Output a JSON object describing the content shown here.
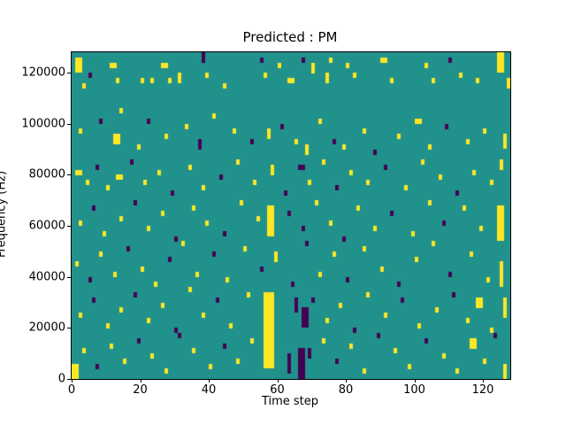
{
  "figure": {
    "title": "Predicted : PM",
    "xlabel": "Time step",
    "ylabel": "Frequency (Hz)"
  },
  "chart_data": {
    "type": "heatmap",
    "title": "Predicted : PM",
    "xlabel": "Time step",
    "ylabel": "Frequency (Hz)",
    "xlim": [
      0,
      128
    ],
    "ylim": [
      0,
      128000
    ],
    "x_ticks": [
      0,
      20,
      40,
      60,
      80,
      100,
      120
    ],
    "y_ticks": [
      0,
      20000,
      40000,
      60000,
      80000,
      100000,
      120000
    ],
    "grid": false,
    "legend": "none",
    "colormap": "viridis",
    "colors": {
      "background": "#21918c",
      "y": "#fde725",
      "p": "#440154"
    },
    "cell_size": {
      "x_steps": 1,
      "y_hz": 2000
    },
    "cells_format": "[x_step, y_bin(2000Hz each, 0=bottom), width_steps, height_bins, color_key(y=yellow,p=purple)]",
    "cells": [
      [
        1,
        60,
        2,
        3,
        "y"
      ],
      [
        3,
        57,
        1,
        1,
        "y"
      ],
      [
        5,
        59,
        1,
        1,
        "p"
      ],
      [
        11,
        61,
        2,
        1,
        "y"
      ],
      [
        13,
        58,
        1,
        1,
        "y"
      ],
      [
        20,
        58,
        1,
        1,
        "y"
      ],
      [
        23,
        58,
        1,
        1,
        "y"
      ],
      [
        26,
        61,
        2,
        1,
        "y"
      ],
      [
        28,
        58,
        1,
        1,
        "y"
      ],
      [
        31,
        58,
        1,
        2,
        "y"
      ],
      [
        38,
        62,
        1,
        2,
        "p"
      ],
      [
        39,
        59,
        1,
        1,
        "y"
      ],
      [
        44,
        57,
        1,
        1,
        "y"
      ],
      [
        55,
        62,
        1,
        1,
        "p"
      ],
      [
        56,
        59,
        1,
        1,
        "y"
      ],
      [
        60,
        61,
        1,
        1,
        "y"
      ],
      [
        63,
        58,
        2,
        1,
        "y"
      ],
      [
        67,
        62,
        1,
        1,
        "p"
      ],
      [
        70,
        60,
        1,
        2,
        "y"
      ],
      [
        74,
        58,
        1,
        2,
        "y"
      ],
      [
        75,
        62,
        1,
        1,
        "y"
      ],
      [
        80,
        61,
        1,
        1,
        "y"
      ],
      [
        82,
        59,
        1,
        1,
        "y"
      ],
      [
        90,
        62,
        2,
        1,
        "y"
      ],
      [
        93,
        58,
        1,
        1,
        "y"
      ],
      [
        103,
        61,
        1,
        1,
        "y"
      ],
      [
        105,
        58,
        1,
        1,
        "y"
      ],
      [
        110,
        62,
        1,
        1,
        "p"
      ],
      [
        113,
        59,
        1,
        1,
        "y"
      ],
      [
        118,
        58,
        1,
        1,
        "y"
      ],
      [
        124,
        60,
        2,
        4,
        "y"
      ],
      [
        127,
        57,
        1,
        2,
        "y"
      ],
      [
        2,
        48,
        1,
        1,
        "y"
      ],
      [
        8,
        50,
        1,
        1,
        "p"
      ],
      [
        12,
        46,
        2,
        2,
        "y"
      ],
      [
        14,
        52,
        1,
        1,
        "y"
      ],
      [
        19,
        45,
        1,
        1,
        "y"
      ],
      [
        22,
        50,
        1,
        1,
        "p"
      ],
      [
        27,
        47,
        1,
        1,
        "y"
      ],
      [
        33,
        49,
        1,
        1,
        "y"
      ],
      [
        37,
        45,
        1,
        2,
        "p"
      ],
      [
        41,
        51,
        1,
        1,
        "y"
      ],
      [
        47,
        48,
        1,
        1,
        "y"
      ],
      [
        52,
        46,
        1,
        1,
        "p"
      ],
      [
        57,
        47,
        1,
        2,
        "y"
      ],
      [
        61,
        49,
        1,
        1,
        "p"
      ],
      [
        65,
        46,
        1,
        1,
        "y"
      ],
      [
        68,
        44,
        1,
        2,
        "y"
      ],
      [
        72,
        50,
        1,
        1,
        "y"
      ],
      [
        76,
        46,
        1,
        1,
        "p"
      ],
      [
        79,
        45,
        1,
        1,
        "y"
      ],
      [
        85,
        48,
        1,
        1,
        "y"
      ],
      [
        88,
        44,
        1,
        1,
        "p"
      ],
      [
        95,
        47,
        1,
        1,
        "y"
      ],
      [
        100,
        50,
        2,
        1,
        "y"
      ],
      [
        104,
        45,
        1,
        1,
        "y"
      ],
      [
        109,
        49,
        1,
        1,
        "p"
      ],
      [
        115,
        46,
        1,
        1,
        "y"
      ],
      [
        120,
        48,
        1,
        1,
        "y"
      ],
      [
        126,
        45,
        1,
        3,
        "y"
      ],
      [
        1,
        40,
        2,
        1,
        "y"
      ],
      [
        4,
        38,
        1,
        1,
        "y"
      ],
      [
        7,
        41,
        1,
        1,
        "p"
      ],
      [
        10,
        37,
        1,
        1,
        "y"
      ],
      [
        13,
        39,
        2,
        1,
        "y"
      ],
      [
        17,
        42,
        1,
        1,
        "p"
      ],
      [
        21,
        38,
        1,
        1,
        "y"
      ],
      [
        25,
        40,
        1,
        1,
        "y"
      ],
      [
        29,
        36,
        1,
        1,
        "p"
      ],
      [
        34,
        41,
        1,
        1,
        "y"
      ],
      [
        38,
        37,
        1,
        1,
        "y"
      ],
      [
        43,
        39,
        1,
        1,
        "p"
      ],
      [
        48,
        42,
        1,
        1,
        "y"
      ],
      [
        53,
        38,
        1,
        1,
        "y"
      ],
      [
        58,
        40,
        1,
        2,
        "y"
      ],
      [
        62,
        36,
        1,
        1,
        "p"
      ],
      [
        66,
        41,
        2,
        1,
        "p"
      ],
      [
        69,
        38,
        1,
        1,
        "y"
      ],
      [
        73,
        42,
        1,
        1,
        "y"
      ],
      [
        77,
        37,
        1,
        1,
        "p"
      ],
      [
        81,
        40,
        1,
        1,
        "y"
      ],
      [
        86,
        38,
        1,
        1,
        "y"
      ],
      [
        91,
        41,
        1,
        1,
        "p"
      ],
      [
        97,
        37,
        1,
        1,
        "y"
      ],
      [
        102,
        42,
        1,
        1,
        "y"
      ],
      [
        107,
        39,
        1,
        1,
        "y"
      ],
      [
        112,
        36,
        1,
        1,
        "p"
      ],
      [
        117,
        40,
        1,
        1,
        "y"
      ],
      [
        122,
        38,
        1,
        1,
        "y"
      ],
      [
        125,
        41,
        1,
        2,
        "y"
      ],
      [
        2,
        30,
        1,
        1,
        "y"
      ],
      [
        6,
        33,
        1,
        1,
        "p"
      ],
      [
        9,
        28,
        1,
        1,
        "y"
      ],
      [
        14,
        31,
        1,
        1,
        "y"
      ],
      [
        18,
        34,
        1,
        1,
        "p"
      ],
      [
        22,
        29,
        1,
        1,
        "y"
      ],
      [
        26,
        32,
        1,
        1,
        "y"
      ],
      [
        30,
        27,
        1,
        1,
        "p"
      ],
      [
        35,
        33,
        1,
        1,
        "y"
      ],
      [
        39,
        30,
        1,
        1,
        "y"
      ],
      [
        44,
        28,
        1,
        1,
        "p"
      ],
      [
        49,
        34,
        1,
        1,
        "y"
      ],
      [
        54,
        31,
        1,
        1,
        "y"
      ],
      [
        57,
        28,
        2,
        6,
        "y"
      ],
      [
        63,
        32,
        1,
        1,
        "p"
      ],
      [
        67,
        29,
        1,
        1,
        "p"
      ],
      [
        71,
        34,
        1,
        1,
        "y"
      ],
      [
        75,
        30,
        1,
        1,
        "y"
      ],
      [
        79,
        27,
        1,
        1,
        "p"
      ],
      [
        83,
        33,
        1,
        1,
        "y"
      ],
      [
        88,
        29,
        1,
        1,
        "y"
      ],
      [
        93,
        32,
        1,
        1,
        "p"
      ],
      [
        99,
        28,
        1,
        1,
        "y"
      ],
      [
        104,
        34,
        1,
        1,
        "y"
      ],
      [
        108,
        30,
        1,
        1,
        "p"
      ],
      [
        114,
        33,
        1,
        1,
        "y"
      ],
      [
        119,
        29,
        1,
        1,
        "y"
      ],
      [
        124,
        27,
        2,
        7,
        "y"
      ],
      [
        1,
        22,
        1,
        1,
        "y"
      ],
      [
        5,
        19,
        1,
        1,
        "p"
      ],
      [
        8,
        24,
        1,
        1,
        "y"
      ],
      [
        12,
        20,
        1,
        1,
        "y"
      ],
      [
        16,
        25,
        1,
        1,
        "p"
      ],
      [
        20,
        21,
        1,
        1,
        "y"
      ],
      [
        24,
        18,
        1,
        1,
        "y"
      ],
      [
        28,
        23,
        1,
        1,
        "p"
      ],
      [
        32,
        26,
        1,
        1,
        "y"
      ],
      [
        36,
        20,
        1,
        1,
        "y"
      ],
      [
        41,
        24,
        1,
        1,
        "p"
      ],
      [
        45,
        19,
        1,
        1,
        "y"
      ],
      [
        50,
        25,
        1,
        1,
        "y"
      ],
      [
        55,
        21,
        1,
        1,
        "p"
      ],
      [
        59,
        23,
        1,
        2,
        "y"
      ],
      [
        64,
        18,
        1,
        1,
        "p"
      ],
      [
        68,
        26,
        1,
        1,
        "p"
      ],
      [
        72,
        20,
        1,
        1,
        "y"
      ],
      [
        76,
        24,
        1,
        1,
        "y"
      ],
      [
        80,
        19,
        1,
        1,
        "p"
      ],
      [
        85,
        25,
        1,
        1,
        "y"
      ],
      [
        90,
        21,
        1,
        1,
        "y"
      ],
      [
        95,
        18,
        1,
        1,
        "p"
      ],
      [
        100,
        23,
        1,
        1,
        "y"
      ],
      [
        105,
        26,
        1,
        1,
        "y"
      ],
      [
        110,
        20,
        1,
        1,
        "p"
      ],
      [
        116,
        24,
        1,
        1,
        "y"
      ],
      [
        121,
        19,
        1,
        1,
        "y"
      ],
      [
        125,
        18,
        1,
        5,
        "y"
      ],
      [
        2,
        12,
        1,
        1,
        "y"
      ],
      [
        6,
        15,
        1,
        1,
        "p"
      ],
      [
        10,
        10,
        1,
        1,
        "y"
      ],
      [
        14,
        13,
        1,
        1,
        "y"
      ],
      [
        18,
        16,
        1,
        1,
        "p"
      ],
      [
        22,
        11,
        1,
        1,
        "y"
      ],
      [
        26,
        14,
        1,
        1,
        "y"
      ],
      [
        30,
        9,
        1,
        1,
        "p"
      ],
      [
        34,
        17,
        1,
        1,
        "y"
      ],
      [
        38,
        12,
        1,
        1,
        "y"
      ],
      [
        42,
        15,
        1,
        1,
        "p"
      ],
      [
        46,
        10,
        1,
        1,
        "y"
      ],
      [
        51,
        16,
        1,
        1,
        "y"
      ],
      [
        56,
        9,
        3,
        8,
        "y"
      ],
      [
        65,
        13,
        1,
        3,
        "p"
      ],
      [
        67,
        10,
        2,
        4,
        "p"
      ],
      [
        70,
        15,
        1,
        1,
        "p"
      ],
      [
        74,
        11,
        1,
        1,
        "y"
      ],
      [
        78,
        14,
        1,
        1,
        "y"
      ],
      [
        82,
        9,
        1,
        1,
        "p"
      ],
      [
        86,
        16,
        1,
        1,
        "y"
      ],
      [
        91,
        12,
        1,
        1,
        "y"
      ],
      [
        96,
        15,
        1,
        1,
        "p"
      ],
      [
        101,
        10,
        1,
        1,
        "y"
      ],
      [
        106,
        13,
        1,
        1,
        "y"
      ],
      [
        111,
        16,
        1,
        1,
        "p"
      ],
      [
        115,
        11,
        1,
        1,
        "y"
      ],
      [
        118,
        14,
        2,
        2,
        "y"
      ],
      [
        122,
        9,
        1,
        1,
        "y"
      ],
      [
        126,
        12,
        1,
        4,
        "y"
      ],
      [
        0,
        0,
        2,
        3,
        "y"
      ],
      [
        3,
        5,
        1,
        1,
        "y"
      ],
      [
        7,
        2,
        1,
        1,
        "p"
      ],
      [
        11,
        6,
        1,
        1,
        "y"
      ],
      [
        15,
        3,
        1,
        1,
        "y"
      ],
      [
        19,
        7,
        1,
        1,
        "p"
      ],
      [
        23,
        4,
        1,
        1,
        "y"
      ],
      [
        27,
        1,
        1,
        1,
        "y"
      ],
      [
        31,
        8,
        1,
        1,
        "p"
      ],
      [
        35,
        5,
        1,
        1,
        "y"
      ],
      [
        40,
        2,
        1,
        1,
        "y"
      ],
      [
        44,
        6,
        1,
        1,
        "p"
      ],
      [
        48,
        3,
        1,
        1,
        "y"
      ],
      [
        52,
        7,
        1,
        1,
        "y"
      ],
      [
        56,
        2,
        3,
        7,
        "y"
      ],
      [
        63,
        1,
        1,
        4,
        "p"
      ],
      [
        66,
        0,
        2,
        6,
        "p"
      ],
      [
        69,
        4,
        1,
        2,
        "p"
      ],
      [
        73,
        7,
        1,
        1,
        "y"
      ],
      [
        77,
        3,
        1,
        1,
        "p"
      ],
      [
        81,
        6,
        1,
        1,
        "y"
      ],
      [
        85,
        1,
        1,
        1,
        "y"
      ],
      [
        89,
        8,
        1,
        1,
        "p"
      ],
      [
        94,
        5,
        1,
        1,
        "y"
      ],
      [
        98,
        2,
        1,
        1,
        "y"
      ],
      [
        103,
        7,
        1,
        1,
        "p"
      ],
      [
        108,
        4,
        1,
        1,
        "y"
      ],
      [
        112,
        1,
        1,
        1,
        "y"
      ],
      [
        116,
        6,
        2,
        2,
        "y"
      ],
      [
        120,
        3,
        1,
        1,
        "y"
      ],
      [
        123,
        8,
        1,
        1,
        "p"
      ],
      [
        126,
        0,
        1,
        3,
        "y"
      ]
    ]
  }
}
